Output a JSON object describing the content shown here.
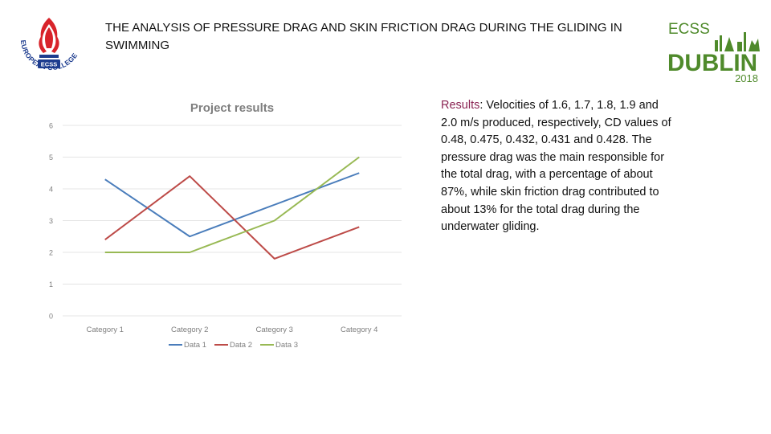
{
  "slide": {
    "title": "THE ANALYSIS OF PRESSURE DRAG AND SKIN FRICTION DRAG DURING THE GLIDING IN SWIMMING",
    "results_label": "Results",
    "results_colon": ":",
    "results_body": " Velocities of 1.6, 1.7, 1.8, 1.9 and 2.0 m/s produced, respectively, CD values of 0.48, 0.475, 0.432, 0.431 and 0.428. The pressure drag was the main responsible for the total drag, with a percentage of about 87%, while skin friction drag contributed to about 13% for the total drag during the underwater gliding."
  },
  "logos": {
    "left": {
      "ring_text": "EUROPEAN COLLEGE of SPORT SCIENCE",
      "badge": "ECSS",
      "color": "#d8232a",
      "ring_color": "#1d3c8f"
    },
    "right": {
      "top_text": "ECSS",
      "main_text": "DUBLIN",
      "year": "2018",
      "color": "#4f8a2b"
    }
  },
  "chart_data": {
    "type": "line",
    "title": "Project results",
    "categories": [
      "Category 1",
      "Category  2",
      "Category 3",
      "Category  4"
    ],
    "series": [
      {
        "name": "Data 1",
        "values": [
          4.3,
          2.5,
          3.5,
          4.5
        ],
        "color": "#4a7dbb"
      },
      {
        "name": "Data 2",
        "values": [
          2.4,
          4.4,
          1.8,
          2.8
        ],
        "color": "#bd4b48"
      },
      {
        "name": "Data 3",
        "values": [
          2.0,
          2.0,
          3.0,
          5.0
        ],
        "color": "#98b954"
      }
    ],
    "y_ticks": [
      "0",
      "1",
      "2",
      "3",
      "4",
      "5",
      "6"
    ],
    "ylim": [
      0,
      6
    ],
    "grid": true,
    "legend_position": "bottom"
  }
}
